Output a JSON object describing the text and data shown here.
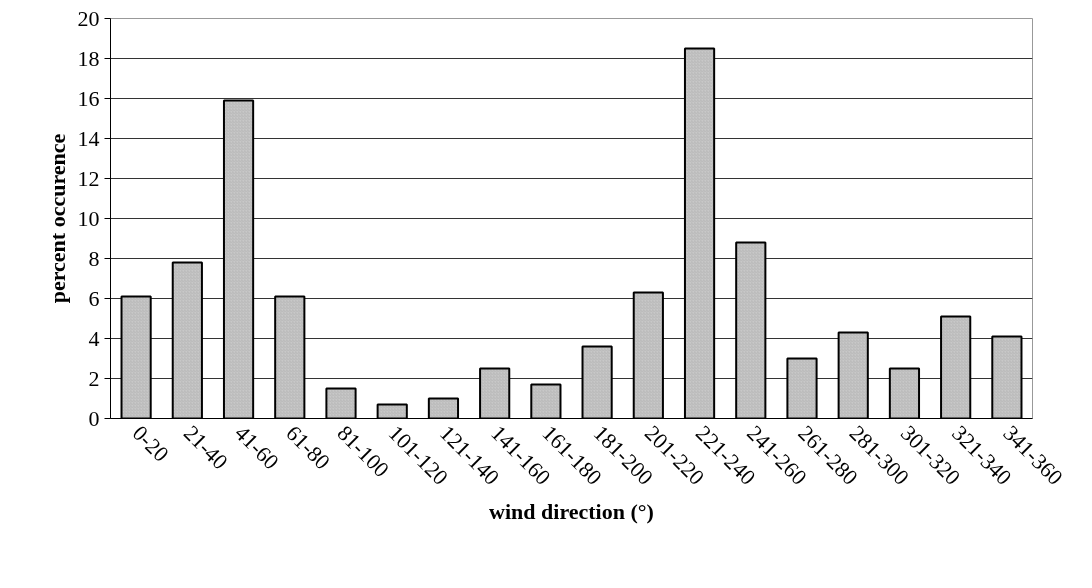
{
  "chart_data": {
    "type": "bar",
    "xlabel": "wind direction (°)",
    "ylabel": "percent occurence",
    "categories": [
      "0-20",
      "21-40",
      "41-60",
      "61-80",
      "81-100",
      "101-120",
      "121-140",
      "141-160",
      "161-180",
      "181-200",
      "201-220",
      "221-240",
      "241-260",
      "261-280",
      "281-300",
      "301-320",
      "321-340",
      "341-360"
    ],
    "values": [
      6.1,
      7.8,
      15.9,
      6.1,
      1.5,
      0.7,
      1.0,
      2.5,
      1.7,
      3.6,
      6.3,
      18.5,
      8.8,
      3.0,
      4.3,
      2.5,
      5.1,
      4.1
    ],
    "color": "#c8c8c8",
    "ylim": [
      0,
      20
    ],
    "yticks": [
      0,
      2,
      4,
      6,
      8,
      10,
      12,
      14,
      16,
      18,
      20
    ],
    "grid": "y"
  }
}
